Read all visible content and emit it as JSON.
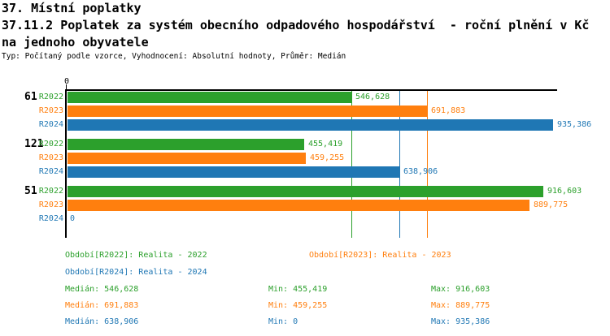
{
  "header": {
    "title_line1": "37. Místní poplatky",
    "title_line2": "37.11.2 Poplatek za systém obecního odpadového hospodářství  - roční plnění v Kč",
    "title_line3": "na jednoho obyvatele",
    "meta": "Typ: Počítaný podle vzorce, Vyhodnocení: Absolutní hodnoty, Průměr: Medián"
  },
  "colors": {
    "r2022_green": "#2ca02c",
    "r2023_orange": "#ff7f0e",
    "r2024_blue": "#1f77b4",
    "axis_black": "#000000",
    "background": "#ffffff"
  },
  "chart_data": {
    "type": "bar",
    "orientation": "horizontal",
    "title": "37.11.2 Poplatek za systém obecního odpadového hospodářství - roční plnění v Kč na jednoho obyvatele",
    "xlabel": "",
    "ylabel": "",
    "xlim": [
      0,
      943000
    ],
    "x_tick_labels": [
      "0"
    ],
    "grid": "median-gridlines-only",
    "categories": [
      "61",
      "121",
      "51"
    ],
    "series": [
      {
        "name": "R2022",
        "color": "#2ca02c",
        "values": [
          546628,
          455419,
          916603
        ],
        "labels": [
          "546,628",
          "455,419",
          "916,603"
        ]
      },
      {
        "name": "R2023",
        "color": "#ff7f0e",
        "values": [
          691883,
          459255,
          889775
        ],
        "labels": [
          "691,883",
          "459,255",
          "889,775"
        ]
      },
      {
        "name": "R2024",
        "color": "#1f77b4",
        "values": [
          935386,
          638906,
          0
        ],
        "labels": [
          "935,386",
          "638,906",
          "0"
        ]
      }
    ],
    "gridlines": [
      {
        "value": 546628,
        "color": "#2ca02c"
      },
      {
        "value": 638906,
        "color": "#1f77b4"
      },
      {
        "value": 691883,
        "color": "#ff7f0e"
      }
    ]
  },
  "legend": {
    "items": [
      {
        "label": "Období[R2022]: Realita - 2022",
        "color": "#2ca02c"
      },
      {
        "label": "Období[R2023]: Realita - 2023",
        "color": "#ff7f0e"
      },
      {
        "label": "Období[R2024]: Realita - 2024",
        "color": "#1f77b4"
      }
    ]
  },
  "stats": {
    "rows": [
      {
        "color": "#2ca02c",
        "cells": [
          "Medián: 546,628",
          "Min: 455,419",
          "Max: 916,603"
        ]
      },
      {
        "color": "#ff7f0e",
        "cells": [
          "Medián: 691,883",
          "Min: 459,255",
          "Max: 889,775"
        ]
      },
      {
        "color": "#1f77b4",
        "cells": [
          "Medián: 638,906",
          "Min: 0",
          "Max: 935,386"
        ]
      }
    ]
  }
}
